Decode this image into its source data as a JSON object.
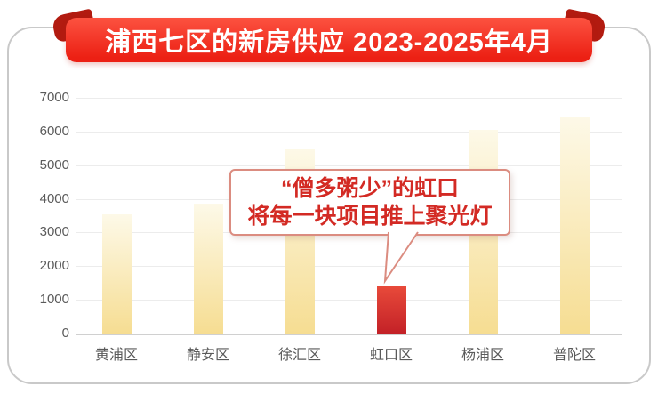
{
  "banner": {
    "title": "浦西七区的新房供应 2023-2025年4月"
  },
  "callout": {
    "line1": "“僧多粥少”的虹口",
    "line2": "将每一块项目推上聚光灯"
  },
  "chart_data": {
    "type": "bar",
    "title": "浦西七区的新房供应 2023-2025年4月",
    "categories": [
      "黄浦区",
      "静安区",
      "徐汇区",
      "虹口区",
      "杨浦区",
      "普陀区"
    ],
    "values": [
      3550,
      3850,
      5500,
      1400,
      6050,
      6450
    ],
    "highlight_index": 3,
    "highlight_category": "虹口区",
    "annotation": "“僧多粥少”的虹口 将每一块项目推上聚光灯",
    "xlabel": "",
    "ylabel": "",
    "ylim": [
      0,
      7000
    ],
    "yticks": [
      0,
      1000,
      2000,
      3000,
      4000,
      5000,
      6000,
      7000
    ],
    "grid": true,
    "legend": false
  },
  "colors": {
    "ribbon_top": "#fc5240",
    "ribbon_bottom": "#ec2014",
    "fold_red": "#b21b10",
    "bar_top": "#fdf9e8",
    "bar_bottom": "#f6dd92",
    "highlight_top": "#e84a3a",
    "highlight_bottom": "#c32127",
    "callout_border": "#db8c80",
    "callout_text": "#d32a24",
    "axis_text": "#5a5a5a",
    "gridline": "#ececec",
    "baseline": "#d0d0d0",
    "card_border": "#c9c9c9"
  }
}
